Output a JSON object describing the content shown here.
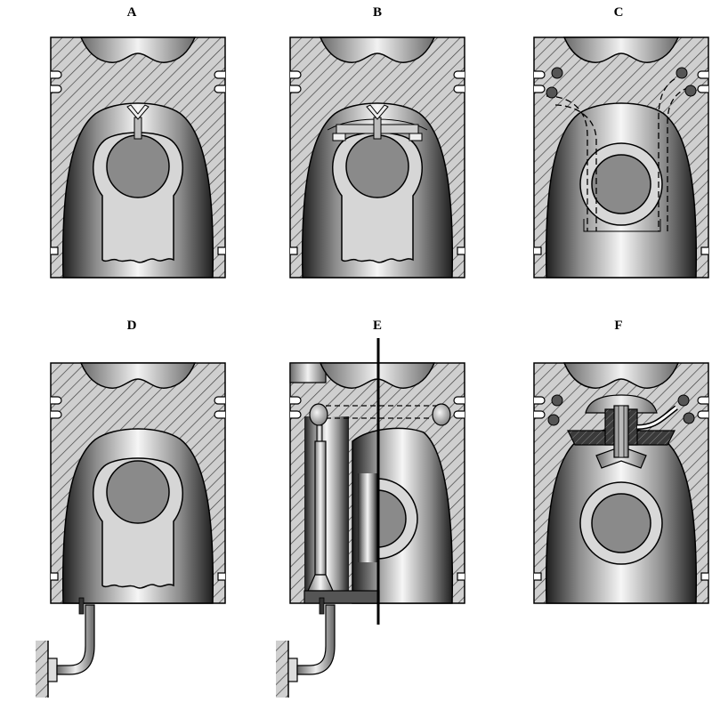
{
  "panels": [
    {
      "id": "A",
      "label": "A"
    },
    {
      "id": "B",
      "label": "B"
    },
    {
      "id": "C",
      "label": "C"
    },
    {
      "id": "D",
      "label": "D"
    },
    {
      "id": "E",
      "label": "E"
    },
    {
      "id": "F",
      "label": "F"
    }
  ],
  "colors": {
    "hatch_fill": "#c8c8c8",
    "hatch_line": "#555555",
    "pin_boss": "#d8d8d8",
    "pin_bore": "#8a8a8a",
    "skirt_dark": "#2a2a2a",
    "skirt_light": "#f4f4f4",
    "outline": "#000000",
    "dark_part": "#4a4a4a"
  }
}
